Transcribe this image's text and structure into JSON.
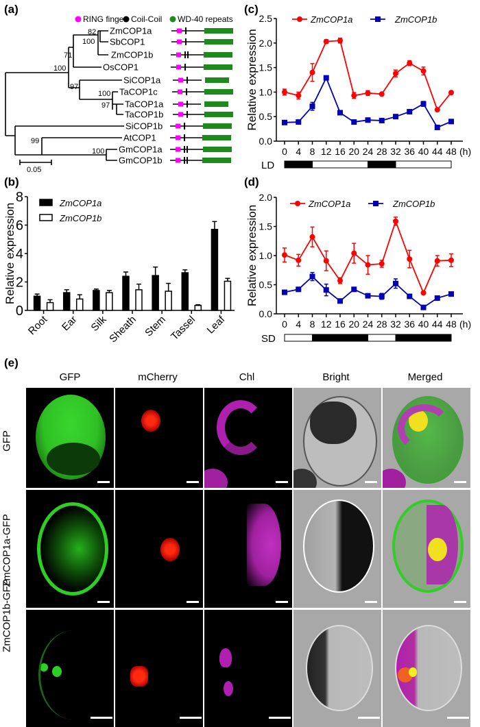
{
  "figure": {
    "panels": {
      "a": "(a)",
      "b": "(b)",
      "c": "(c)",
      "d": "(d)",
      "e": "(e)"
    }
  },
  "tree": {
    "legend": [
      {
        "label": "RING finger",
        "color": "#ff00ff"
      },
      {
        "label": "Coil-Coil",
        "color": "#000000"
      },
      {
        "label": "WD-40 repeats",
        "color": "#1e8a1e"
      }
    ],
    "taxa": [
      "ZmCOP1a",
      "SbCOP1",
      "ZmCOP1b",
      "OsCOP1",
      "SiCOP1a",
      "TaCOP1c",
      "TaCOP1a",
      "TaCOP1b",
      "SiCOP1b",
      "AtCOP1",
      "GmCOP1a",
      "GmCOP1b"
    ],
    "coil_counts": [
      1,
      1,
      2,
      1,
      1,
      1,
      1,
      1,
      1,
      1,
      2,
      2
    ],
    "bootstrap": {
      "zm_sb_82": "82",
      "zm_sb_zmb_100": "100",
      "os_71": "71",
      "grass_100": "100",
      "si_ta_97": "97",
      "ta_100": "100",
      "ta_97": "97",
      "at_gm_99": "99",
      "gm_100": "100"
    },
    "scale_label": "0.05"
  },
  "chart_data": [
    {
      "id": "b",
      "type": "bar",
      "title": "",
      "xlabel": "",
      "ylabel": "Relative expression",
      "ylim": [
        0,
        8
      ],
      "yticks": [
        "0",
        "2",
        "4",
        "6",
        "8"
      ],
      "categories": [
        "Root",
        "Ear",
        "Silk",
        "Sheath",
        "Stem",
        "Tassel",
        "Leaf"
      ],
      "legend_position": "top-left",
      "series": [
        {
          "name": "ZmCOP1a",
          "style": "filled-black",
          "values": [
            1.0,
            1.25,
            1.4,
            2.4,
            2.45,
            2.65,
            5.7
          ],
          "errors": [
            0.15,
            0.2,
            0.1,
            0.3,
            0.6,
            0.2,
            0.55
          ]
        },
        {
          "name": "ZmCOP1b",
          "style": "open",
          "values": [
            0.55,
            0.8,
            1.25,
            1.45,
            1.35,
            0.35,
            2.05
          ],
          "errors": [
            0.2,
            0.3,
            0.15,
            0.4,
            0.55,
            0.05,
            0.2
          ]
        }
      ]
    },
    {
      "id": "c",
      "type": "line",
      "title": "",
      "xlabel": "(h)",
      "ylabel": "Relative expression",
      "ylim": [
        0,
        2.5
      ],
      "yticks": [
        "0.0",
        "0.5",
        "1.0",
        "1.5",
        "2.0",
        "2.5"
      ],
      "x": [
        0,
        4,
        8,
        12,
        16,
        20,
        24,
        28,
        32,
        36,
        40,
        44,
        48
      ],
      "legend_position": "top",
      "photoperiod_label": "LD",
      "photoperiod": [
        {
          "from": 0,
          "to": 8,
          "state": "dark"
        },
        {
          "from": 8,
          "to": 24,
          "state": "light"
        },
        {
          "from": 24,
          "to": 32,
          "state": "dark"
        },
        {
          "from": 32,
          "to": 48,
          "state": "light"
        }
      ],
      "series": [
        {
          "name": "ZmCOP1a",
          "color": "#ff0000",
          "marker": "circle",
          "values": [
            1.0,
            0.93,
            1.4,
            2.03,
            2.05,
            0.93,
            0.98,
            0.96,
            1.38,
            1.59,
            1.43,
            0.64,
            0.99
          ],
          "errors": [
            0.06,
            0.07,
            0.18,
            0.04,
            0.05,
            0.06,
            0.05,
            0.02,
            0.07,
            0.05,
            0.08,
            0.02,
            0.02
          ]
        },
        {
          "name": "ZmCOP1b",
          "color": "#0000b4",
          "marker": "square",
          "values": [
            0.38,
            0.39,
            0.71,
            1.29,
            0.58,
            0.39,
            0.43,
            0.42,
            0.5,
            0.6,
            0.76,
            0.28,
            0.4
          ],
          "errors": [
            0.02,
            0.03,
            0.08,
            0.03,
            0.03,
            0.02,
            0.02,
            0.02,
            0.02,
            0.02,
            0.05,
            0.02,
            0.02
          ]
        }
      ]
    },
    {
      "id": "d",
      "type": "line",
      "title": "",
      "xlabel": "(h)",
      "ylabel": "Relative expression",
      "ylim": [
        0,
        2.0
      ],
      "yticks": [
        "0.0",
        "0.5",
        "1.0",
        "1.5",
        "2.0"
      ],
      "x": [
        0,
        4,
        8,
        12,
        16,
        20,
        24,
        28,
        32,
        36,
        40,
        44,
        48
      ],
      "legend_position": "top",
      "photoperiod_label": "SD",
      "photoperiod": [
        {
          "from": 0,
          "to": 8,
          "state": "light"
        },
        {
          "from": 8,
          "to": 24,
          "state": "dark"
        },
        {
          "from": 24,
          "to": 32,
          "state": "light"
        },
        {
          "from": 32,
          "to": 48,
          "state": "dark"
        }
      ],
      "series": [
        {
          "name": "ZmCOP1a",
          "color": "#ff0000",
          "marker": "circle",
          "values": [
            1.01,
            0.92,
            1.32,
            0.91,
            0.57,
            1.04,
            0.84,
            0.86,
            1.59,
            0.94,
            0.36,
            0.91,
            0.92
          ],
          "errors": [
            0.12,
            0.1,
            0.17,
            0.17,
            0.05,
            0.17,
            0.16,
            0.06,
            0.07,
            0.15,
            0.02,
            0.09,
            0.11
          ]
        },
        {
          "name": "ZmCOP1b",
          "color": "#0000b4",
          "marker": "square",
          "values": [
            0.37,
            0.42,
            0.64,
            0.41,
            0.22,
            0.42,
            0.31,
            0.3,
            0.52,
            0.3,
            0.11,
            0.27,
            0.34
          ],
          "errors": [
            0.02,
            0.03,
            0.07,
            0.1,
            0.02,
            0.02,
            0.02,
            0.05,
            0.08,
            0.02,
            0.02,
            0.02,
            0.02
          ]
        }
      ]
    }
  ],
  "microscopy": {
    "columns": [
      "GFP",
      "mCherry",
      "Chl",
      "Bright",
      "Merged"
    ],
    "rows": [
      "GFP",
      "ZmCOP1a-GFP",
      "ZmCOP1b-GFP"
    ]
  }
}
